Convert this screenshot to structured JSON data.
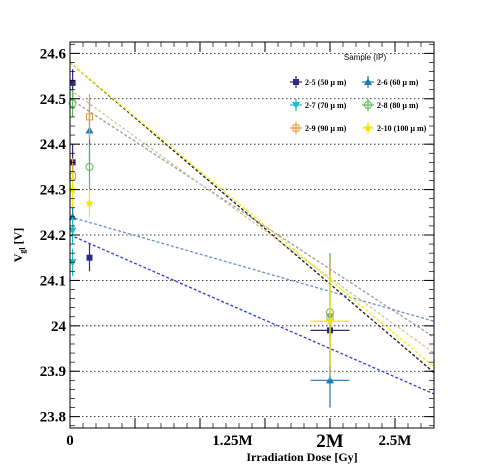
{
  "chart_data": {
    "type": "scatter",
    "xlabel": "Irradiation Dose [Gy]",
    "ylabel_main": "V",
    "ylabel_sub": "gl",
    "ylabel_unit": " [V]",
    "legend_title": "Sample (IP)",
    "xlim": [
      0,
      2800000
    ],
    "ylim": [
      23.775,
      24.625
    ],
    "grid": "horizontal dotted",
    "legend_position": "top-right",
    "x_ticks": [
      {
        "value": 0,
        "label": "0",
        "big": false
      },
      {
        "value": 1250000,
        "label": "1.25M",
        "big": false
      },
      {
        "value": 2500000,
        "label": "2.5M",
        "big": false
      }
    ],
    "x_extra_label": {
      "value": 2000000,
      "label": "2M"
    },
    "y_ticks": [
      {
        "value": 23.8,
        "label": "23.8"
      },
      {
        "value": 23.9,
        "label": "23.9"
      },
      {
        "value": 24.0,
        "label": "24"
      },
      {
        "value": 24.1,
        "label": "24.1"
      },
      {
        "value": 24.2,
        "label": "24.2"
      },
      {
        "value": 24.3,
        "label": "24.3"
      },
      {
        "value": 24.4,
        "label": "24.4"
      },
      {
        "value": 24.5,
        "label": "24.5"
      },
      {
        "value": 24.6,
        "label": "24.6"
      }
    ],
    "series": [
      {
        "name": "2-5 (50  µ m)",
        "color": "#2e2a7f",
        "marker": "square",
        "line_color": "#1a1a1a",
        "points": [
          {
            "x": 20000,
            "y": 24.535,
            "yerr": 0.03
          },
          {
            "x": 20000,
            "y": 24.36,
            "yerr": 0.04
          },
          {
            "x": 150000,
            "y": 24.15,
            "yerr": 0.03
          },
          {
            "x": 2000000,
            "y": 23.99,
            "yerr": 0.02,
            "xerr": 150000
          }
        ],
        "fit": [
          24.58,
          23.897
        ]
      },
      {
        "name": "2-6 (60  µ m)",
        "color": "#1f77b4",
        "marker": "triangle-up",
        "line_color": "#2e3fd6",
        "points": [
          {
            "x": 20000,
            "y": 24.24,
            "yerr": 0.03
          },
          {
            "x": 150000,
            "y": 24.43,
            "yerr": 0.07
          },
          {
            "x": 2000000,
            "y": 23.88,
            "yerr": 0.06,
            "xerr": 150000
          }
        ],
        "fit": [
          24.2,
          23.85
        ]
      },
      {
        "name": "2-7 (70  µ m)",
        "color": "#17becf",
        "marker": "triangle-down",
        "line_color": "#6a8fcf",
        "points": [
          {
            "x": 20000,
            "y": 24.14,
            "yerr": 0.03
          },
          {
            "x": 20000,
            "y": 24.21,
            "yerr": 0.03
          },
          {
            "x": 2000000,
            "y": 24.02,
            "yerr": 0.14
          }
        ],
        "fit": [
          24.24,
          24.01
        ]
      },
      {
        "name": "2-8 (80  µ m)",
        "color": "#5cb85c",
        "marker": "circle-open",
        "line_color": "#9e9e9e",
        "points": [
          {
            "x": 20000,
            "y": 24.49,
            "yerr": 0.03
          },
          {
            "x": 150000,
            "y": 24.35,
            "yerr": 0.05
          },
          {
            "x": 2000000,
            "y": 24.03,
            "yerr": 0.13
          }
        ],
        "fit": [
          24.5,
          23.975
        ]
      },
      {
        "name": "2-9 (90  µ m)",
        "color": "#e89a3c",
        "marker": "square-open",
        "line_color": "#cfc5a0",
        "points": [
          {
            "x": 20000,
            "y": 24.33,
            "yerr": 0.04
          },
          {
            "x": 150000,
            "y": 24.46,
            "yerr": 0.05
          },
          {
            "x": 2000000,
            "y": 24.02,
            "yerr": 0.13
          }
        ],
        "fit": [
          24.52,
          23.94
        ]
      },
      {
        "name": "2-10 (100  µ m)",
        "color": "#f2e600",
        "marker": "star",
        "line_color": "#f5f000",
        "points": [
          {
            "x": 20000,
            "y": 24.3,
            "yerr": 0.04
          },
          {
            "x": 150000,
            "y": 24.27,
            "yerr": 0.03
          },
          {
            "x": 2000000,
            "y": 24.01,
            "yerr": 0.1,
            "xerr": 150000
          }
        ],
        "fit": [
          24.58,
          23.91
        ]
      }
    ]
  }
}
